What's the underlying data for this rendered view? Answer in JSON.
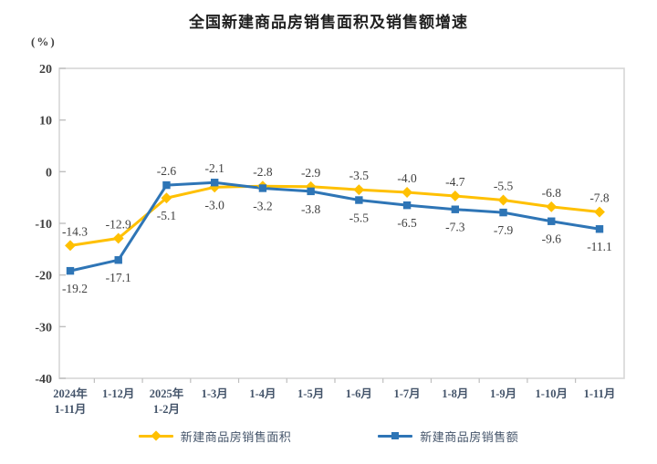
{
  "page": {
    "background": "#ffffff"
  },
  "chart_data": {
    "type": "line",
    "title": "全国新建商品房销售面积及销售额增速",
    "unit_label": "(%)",
    "categories": [
      "2024年\n1-11月",
      "1-12月",
      "2025年\n1-2月",
      "1-3月",
      "1-4月",
      "1-5月",
      "1-6月",
      "1-7月",
      "1-8月",
      "1-9月",
      "1-10月",
      "1-11月"
    ],
    "series": [
      {
        "name": "新建商品房销售面积",
        "color": "#FFC000",
        "marker": "diamond",
        "values": [
          -14.3,
          -12.9,
          -5.1,
          -3.0,
          -2.8,
          -2.9,
          -3.5,
          -4.0,
          -4.7,
          -5.5,
          -6.8,
          -7.8
        ]
      },
      {
        "name": "新建商品房销售额",
        "color": "#2E75B6",
        "marker": "square",
        "values": [
          -19.2,
          -17.1,
          -2.6,
          -2.1,
          -3.2,
          -3.8,
          -5.5,
          -6.5,
          -7.3,
          -7.9,
          -9.6,
          -11.1
        ]
      }
    ],
    "ylim": [
      -40,
      20
    ],
    "yticks": [
      20,
      10,
      0,
      -10,
      -20,
      -30,
      -40
    ],
    "grid": false,
    "legend_position": "bottom",
    "colors": {
      "plot_border": "#D6D6D6",
      "tick": "#BFBFBF",
      "value_label": "#404040",
      "ytick_label": "#404040",
      "xtick_label": "#44546A",
      "legend_label": "#44546A",
      "title": "#1F1F1F"
    }
  }
}
